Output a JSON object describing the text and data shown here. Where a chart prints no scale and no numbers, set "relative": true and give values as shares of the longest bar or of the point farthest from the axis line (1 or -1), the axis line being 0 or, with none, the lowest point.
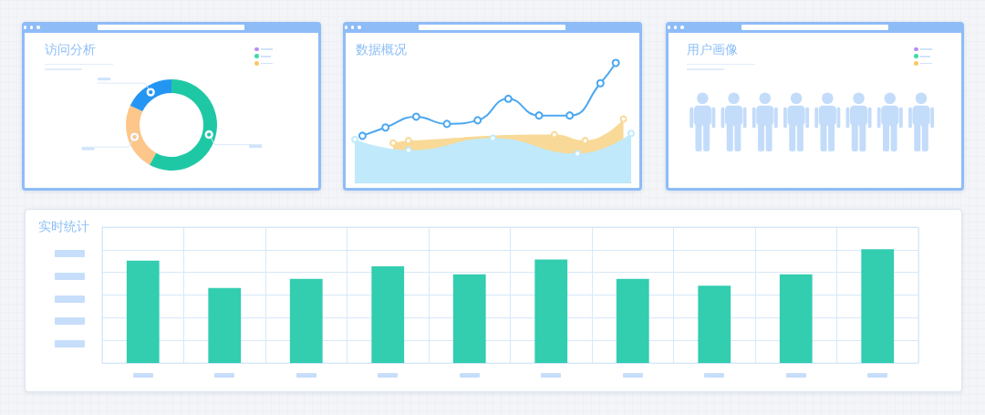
{
  "chart_data": [
    {
      "type": "donut",
      "title": "访问分析",
      "categories": [
        null,
        null,
        null
      ],
      "values": [
        58,
        24,
        18
      ],
      "colors": [
        "#1fc8a5",
        "#fdc68a",
        "#2396f4"
      ]
    },
    {
      "type": "line",
      "title": "数据概况",
      "relative": true,
      "marker": "circle",
      "categories": [
        null,
        null,
        null,
        null,
        null,
        null,
        null,
        null,
        null,
        null,
        null,
        null,
        null,
        null,
        null,
        null,
        null,
        null,
        null,
        null,
        null,
        null,
        null,
        null,
        null,
        null,
        null,
        null,
        null,
        null,
        null,
        null,
        null,
        null,
        null,
        null,
        null
      ],
      "series": [
        {
          "type": "area",
          "color": "#f8d997",
          "values": [
            null,
            null,
            null,
            null,
            null,
            0.33,
            null,
            0.35,
            null,
            null,
            null,
            null,
            null,
            null,
            null,
            null,
            null,
            null,
            null,
            null,
            null,
            null,
            null,
            null,
            null,
            null,
            0.4,
            null,
            null,
            null,
            0.35,
            null,
            null,
            null,
            null,
            0.53,
            null
          ]
        },
        {
          "type": "area",
          "color": "#c0eafb",
          "values": [
            0.36,
            null,
            null,
            null,
            null,
            null,
            null,
            0.27,
            null,
            null,
            null,
            null,
            null,
            null,
            null,
            null,
            null,
            null,
            0.37,
            null,
            null,
            null,
            null,
            null,
            null,
            null,
            null,
            null,
            null,
            0.24,
            null,
            null,
            null,
            null,
            null,
            null,
            0.41
          ]
        },
        {
          "type": "line",
          "color": "#4ba8f1",
          "values": [
            null,
            0.39,
            null,
            null,
            0.46,
            null,
            null,
            null,
            0.55,
            null,
            null,
            null,
            0.49,
            null,
            null,
            null,
            0.52,
            null,
            null,
            null,
            0.7,
            null,
            null,
            null,
            0.56,
            null,
            null,
            null,
            0.56,
            null,
            null,
            null,
            0.83,
            null,
            1,
            null,
            null
          ]
        }
      ]
    },
    {
      "type": "other",
      "title": "用户画像"
    },
    {
      "type": "bar",
      "title": "实时统计",
      "relative": true,
      "grid": true,
      "color": "#33cdb0",
      "categories": [
        null,
        null,
        null,
        null,
        null,
        null,
        null,
        null,
        null,
        null
      ],
      "values": [
        0.9,
        0.66,
        0.74,
        0.85,
        0.78,
        0.91,
        0.74,
        0.68,
        0.78,
        1
      ]
    }
  ]
}
